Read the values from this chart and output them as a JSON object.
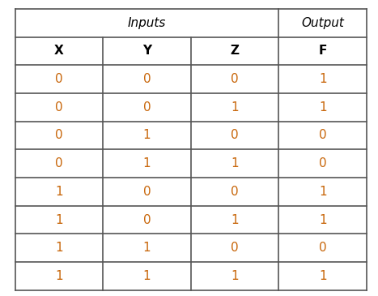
{
  "title_inputs": "Inputs",
  "title_output": "Output",
  "col_headers": [
    "X",
    "Y",
    "Z",
    "F"
  ],
  "rows": [
    [
      0,
      0,
      0,
      1
    ],
    [
      0,
      0,
      1,
      1
    ],
    [
      0,
      1,
      0,
      0
    ],
    [
      0,
      1,
      1,
      0
    ],
    [
      1,
      0,
      0,
      1
    ],
    [
      1,
      0,
      1,
      1
    ],
    [
      1,
      1,
      0,
      0
    ],
    [
      1,
      1,
      1,
      1
    ]
  ],
  "bg_color": "#ffffff",
  "data_color": "#c8660a",
  "header_color": "#000000",
  "line_color": "#555555",
  "font_size_title": 11,
  "font_size_header": 11,
  "font_size_data": 11,
  "fig_width": 4.67,
  "fig_height": 3.65,
  "dpi": 100
}
